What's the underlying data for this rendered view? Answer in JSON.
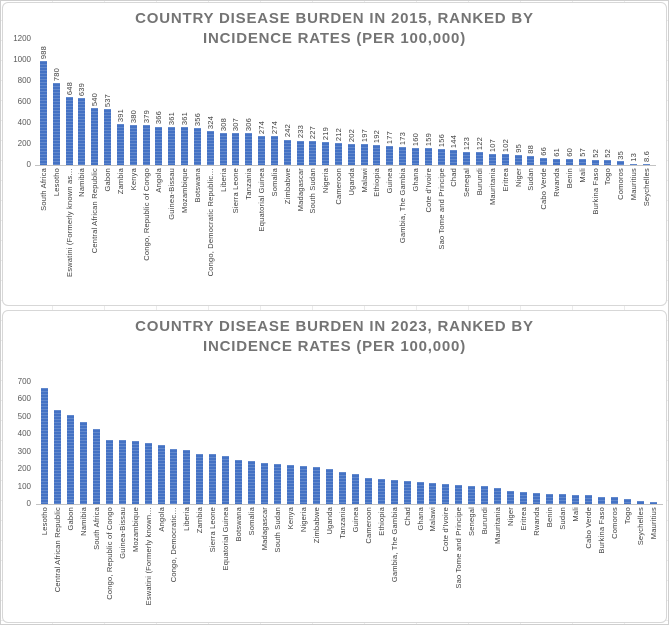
{
  "accent_color": "#4472C4",
  "chart_data": [
    {
      "type": "bar",
      "title": "COUNTRY DISEASE BURDEN IN 2015, RANKED BY INCIDENCE RATES (PER 100,000)",
      "title_lines": [
        "COUNTRY DISEASE BURDEN IN 2015, RANKED BY",
        "INCIDENCE RATES (PER 100,000)"
      ],
      "xlabel": "",
      "ylabel": "",
      "ylim": [
        0,
        1200
      ],
      "yticks": [
        0,
        200,
        400,
        600,
        800,
        1000,
        1200
      ],
      "grid": false,
      "legend_position": "none",
      "data_labels": true,
      "bar_color": "#4472C4",
      "categories": [
        "South Africa",
        "Lesotho",
        "Eswatini (Formerly known as…",
        "Namibia",
        "Central African Republic",
        "Gabon",
        "Zambia",
        "Kenya",
        "Congo, Republic of Congo",
        "Angola",
        "Guinea-Bissau",
        "Mozambique",
        "Botswana",
        "Congo, Democratic Republic…",
        "Liberia",
        "Sierra Leone",
        "Tanzania",
        "Equatorial Guinea",
        "Somalia",
        "Zimbabwe",
        "Madagascar",
        "South Sudan",
        "Nigeria",
        "Cameroon",
        "Uganda",
        "Malawi",
        "Ethiopia",
        "Guinea",
        "Gambia, The Gambia",
        "Ghana",
        "Cote d'Ivoire",
        "Sao Tome and Principe",
        "Chad",
        "Senegal",
        "Burundi",
        "Mauritania",
        "Eritrea",
        "Niger",
        "Sudan",
        "Cabo Verde",
        "Rwanda",
        "Benin",
        "Mali",
        "Burkina Faso",
        "Togo",
        "Comoros",
        "Mauritius",
        "Seychelles"
      ],
      "values": [
        988,
        780,
        648,
        639,
        540,
        537,
        391,
        380,
        379,
        366,
        361,
        361,
        356,
        324,
        308,
        307,
        306,
        274,
        274,
        242,
        233,
        227,
        219,
        212,
        202,
        197,
        192,
        177,
        173,
        160,
        159,
        156,
        144,
        123,
        122,
        107,
        102,
        95,
        88,
        66,
        61,
        60,
        57,
        52,
        52,
        35,
        13,
        8.6
      ]
    },
    {
      "type": "bar",
      "title": "COUNTRY DISEASE BURDEN IN 2023, RANKED BY INCIDENCE RATES (PER 100,000)",
      "title_lines": [
        "COUNTRY DISEASE BURDEN IN 2023, RANKED BY",
        "INCIDENCE RATES (PER 100,000)"
      ],
      "xlabel": "",
      "ylabel": "",
      "ylim": [
        0,
        700
      ],
      "yticks": [
        0,
        100,
        200,
        300,
        400,
        500,
        600,
        700
      ],
      "grid": false,
      "legend_position": "none",
      "data_labels": false,
      "bar_color": "#4472C4",
      "categories": [
        "Lesotho",
        "Central African Republic",
        "Gabon",
        "Namibia",
        "South Africa",
        "Congo, Republic of Congo",
        "Guinea-Bissau",
        "Mozambique",
        "Eswatini (Formerly known…",
        "Angola",
        "Congo, Democratic…",
        "Liberia",
        "Zambia",
        "Sierra Leone",
        "Equatorial Guinea",
        "Botswana",
        "Somalia",
        "Madagascar",
        "South Sudan",
        "Kenya",
        "Nigeria",
        "Zimbabwe",
        "Uganda",
        "Tanzania",
        "Guinea",
        "Cameroon",
        "Ethiopia",
        "Gambia, The Gambia",
        "Chad",
        "Ghana",
        "Malawi",
        "Cote d'Ivoire",
        "Sao Tome and Principe",
        "Senegal",
        "Burundi",
        "Mauritania",
        "Niger",
        "Eritrea",
        "Rwanda",
        "Benin",
        "Sudan",
        "Mali",
        "Cabo Verde",
        "Burkina Faso",
        "Comoros",
        "Togo",
        "Seychelles",
        "Mauritius"
      ],
      "values": [
        665,
        540,
        510,
        470,
        430,
        370,
        365,
        362,
        350,
        340,
        315,
        307,
        287,
        285,
        278,
        250,
        246,
        238,
        231,
        226,
        219,
        213,
        202,
        183,
        175,
        152,
        143,
        137,
        133,
        128,
        120,
        117,
        109,
        105,
        103,
        91,
        73,
        70,
        62,
        60,
        57,
        53,
        51,
        42,
        38,
        29,
        18,
        12
      ]
    }
  ]
}
